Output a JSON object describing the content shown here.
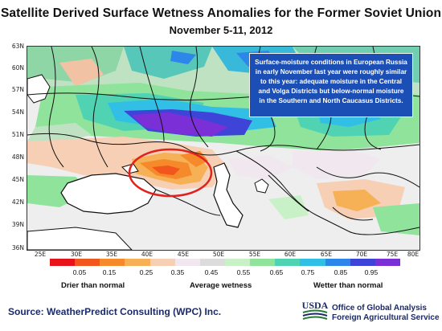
{
  "header": {
    "title": "Satellite Derived Surface Wetness Anomalies for the Former Soviet Union",
    "subtitle": "November 5-11, 2012"
  },
  "map": {
    "lat_ticks": [
      "63N",
      "60N",
      "57N",
      "54N",
      "51N",
      "48N",
      "45N",
      "42N",
      "39N",
      "36N"
    ],
    "lon_ticks": [
      "25E",
      "30E",
      "35E",
      "40E",
      "45E",
      "50E",
      "55E",
      "60E",
      "65E",
      "70E",
      "75E",
      "80E"
    ],
    "highlight": "red-ellipse-around-southern-russia-and-north-caucasus"
  },
  "callout": {
    "text": "Surface-moisture conditions in European Russia in early November last year were roughly similar to this year: adequate moisture in the Central and Volga Districts but below-normal moisture in the Southern and North Caucasus Districts."
  },
  "colorbar": {
    "tick_labels": [
      "0.05",
      "0.15",
      "0.25",
      "0.35",
      "0.45",
      "0.55",
      "0.65",
      "0.75",
      "0.85",
      "0.95"
    ],
    "colors": [
      "#e8121b",
      "#f2561c",
      "#f6892a",
      "#f6b055",
      "#f7cfb5",
      "#f1e7ef",
      "#dcdcdc",
      "#c9f1c7",
      "#8fe39b",
      "#4fd3b2",
      "#31bfe6",
      "#2d86ea",
      "#3f44d8",
      "#7b2fd6"
    ],
    "left_caption": "Drier than normal",
    "center_caption": "Average wetness",
    "right_caption": "Wetter than normal"
  },
  "footer": {
    "source": "Source: WeatherPredict Consulting (WPC) Inc.",
    "usda_label": "USDA",
    "agency_line1": "Office of Global Analysis",
    "agency_line2": "Foreign Agricultural Service"
  },
  "colors": {
    "land_neutral": "#eeeeee",
    "water": "#ffffff",
    "border": "#111111",
    "highlight_ring": "#e0211c",
    "callout_bg": "#1c4fb5"
  }
}
